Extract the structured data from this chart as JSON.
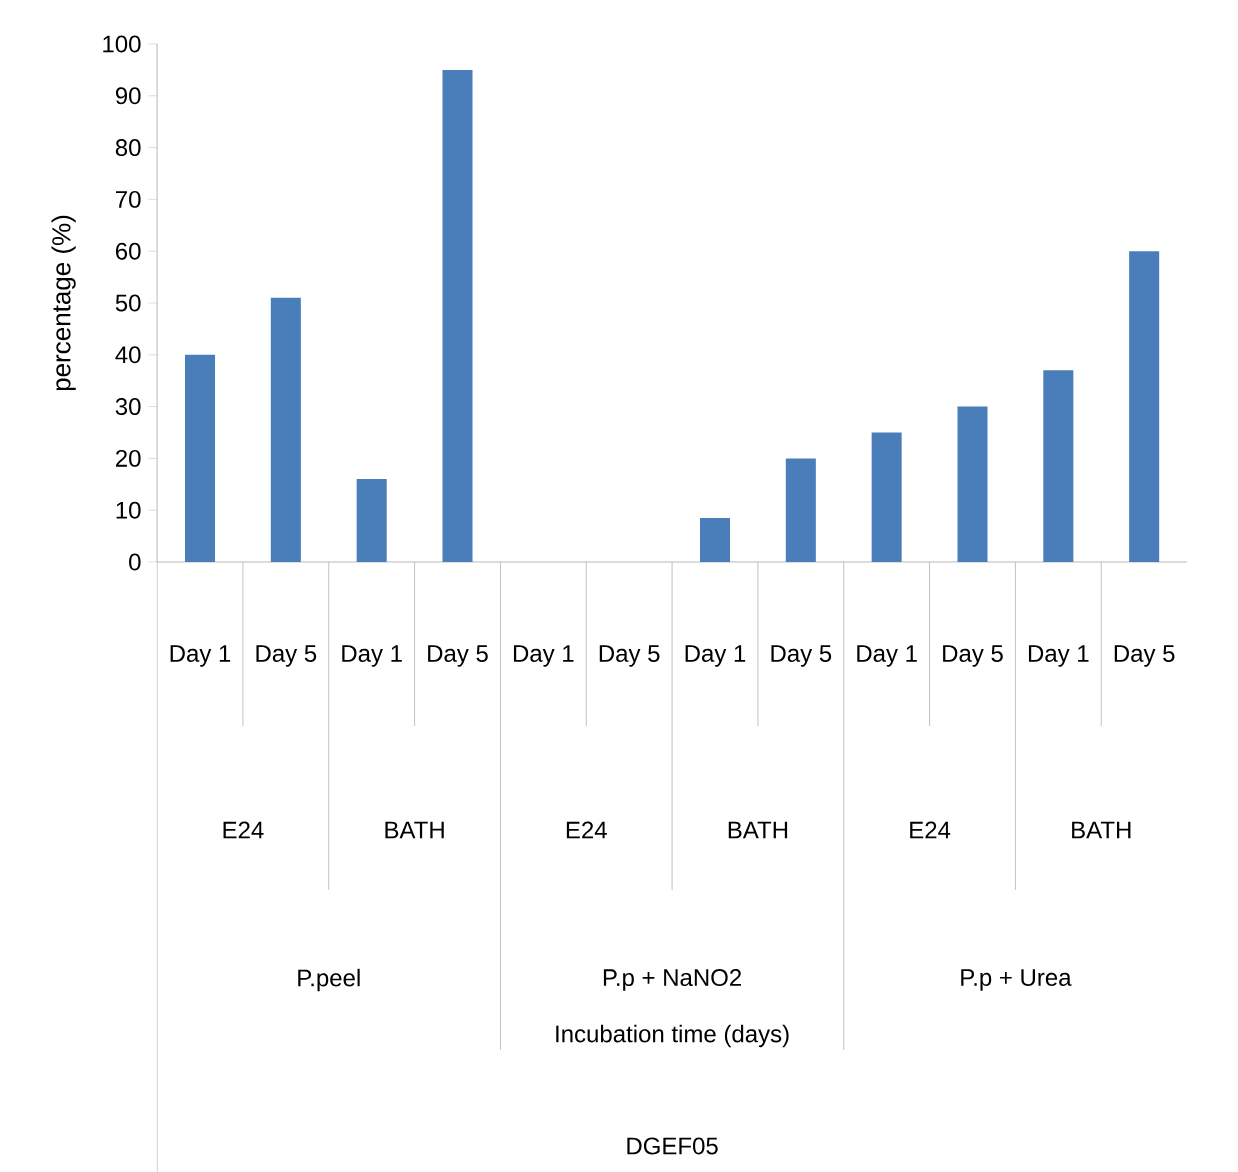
{
  "chart_data": {
    "type": "bar",
    "categories": [
      "Day 1",
      "Day 5",
      "Day 1",
      "Day 5",
      "Day 1",
      "Day 5",
      "Day 1",
      "Day 5",
      "Day 1",
      "Day 5",
      "Day 1",
      "Day 5"
    ],
    "values": [
      40,
      51,
      16,
      95,
      0,
      0,
      8.5,
      20,
      25,
      30,
      37,
      60
    ],
    "color": "#4a7ebb",
    "ylabel": "percentage (%)",
    "ylim": [
      0,
      100
    ],
    "yticks": [
      0,
      10,
      20,
      30,
      40,
      50,
      60,
      70,
      80,
      90,
      100
    ],
    "annotations": [
      "E24",
      "BATH",
      "E24",
      "BATH",
      "E24",
      "BATH",
      "P.peel",
      "P.p + NaNO2",
      "P.p + Urea",
      "DGEF05",
      "Incubation time (days)"
    ],
    "grid": false
  }
}
